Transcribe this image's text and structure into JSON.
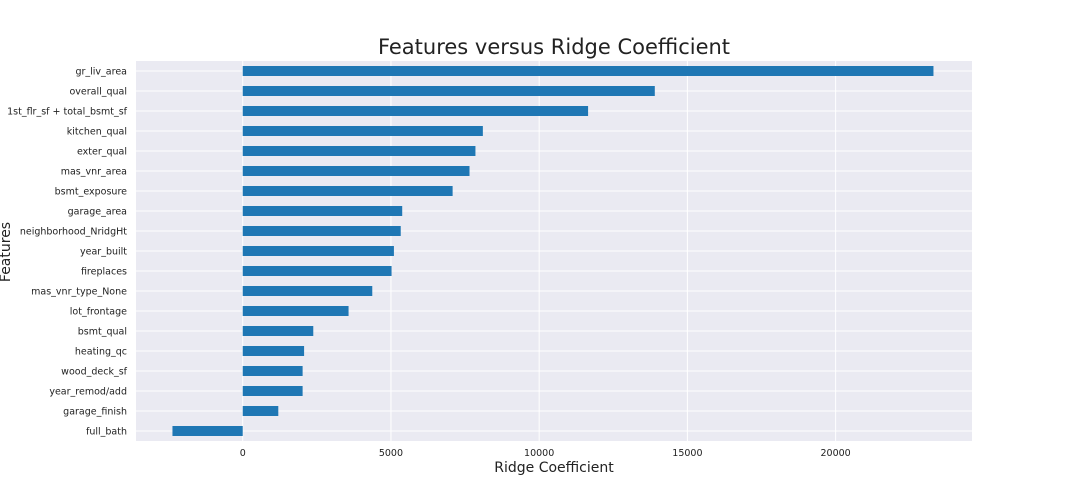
{
  "chart_data": {
    "type": "bar",
    "orientation": "horizontal",
    "title": "Features versus Ridge Coefficient",
    "xlabel": "Ridge Coefficient",
    "ylabel": "Features",
    "xlim": [
      -3600,
      24600
    ],
    "xticks": [
      0,
      5000,
      10000,
      15000,
      20000
    ],
    "grid": true,
    "bar_color": "#1f77b4",
    "background_color": "#eaeaf2",
    "categories": [
      "gr_liv_area",
      "overall_qual",
      "1st_flr_sf + total_bsmt_sf",
      "kitchen_qual",
      "exter_qual",
      "mas_vnr_area",
      "bsmt_exposure",
      "garage_area",
      "neighborhood_NridgHt",
      "year_built",
      "fireplaces",
      "mas_vnr_type_None",
      "lot_frontage",
      "bsmt_qual",
      "heating_qc",
      "wood_deck_sf",
      "year_remod/add",
      "garage_finish",
      "full_bath"
    ],
    "values": [
      23300,
      13900,
      11650,
      8100,
      7850,
      7650,
      7080,
      5380,
      5330,
      5100,
      5020,
      4370,
      3570,
      2380,
      2070,
      2020,
      2020,
      1200,
      -2370
    ]
  }
}
